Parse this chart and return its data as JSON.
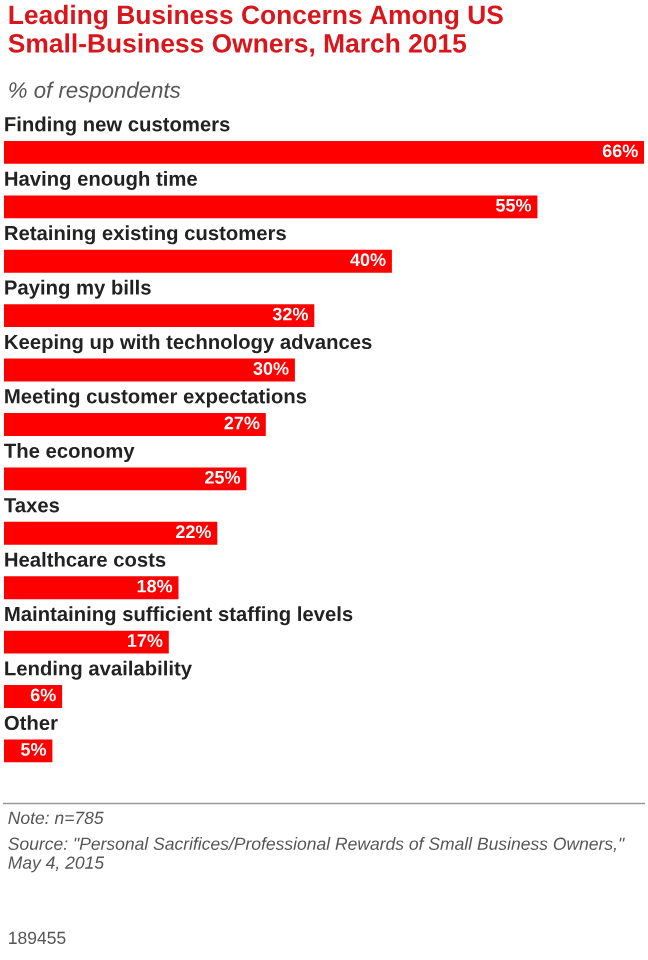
{
  "chart_data": {
    "type": "bar",
    "orientation": "horizontal",
    "title": "Leading Business Concerns Among US Small-Business Owners, March 2015",
    "subtitle": "% of respondents",
    "categories": [
      "Finding new customers",
      "Having enough time",
      "Retaining existing customers",
      "Paying my bills",
      "Keeping up with technology advances",
      "Meeting customer expectations",
      "The economy",
      "Taxes",
      "Healthcare costs",
      "Maintaining sufficient staffing levels",
      "Lending availability",
      "Other"
    ],
    "values": [
      66,
      55,
      40,
      32,
      30,
      27,
      25,
      22,
      18,
      17,
      6,
      5
    ],
    "color": "#ff0000",
    "value_labels": [
      "66%",
      "55%",
      "40%",
      "32%",
      "30%",
      "27%",
      "25%",
      "22%",
      "18%",
      "17%",
      "6%",
      "5%"
    ],
    "annotations": [
      "Note: n=785",
      "Source: \"Personal Sacrifices/Professional Rewards of Small Business Owners,\" May 4, 2015",
      "189455"
    ],
    "data_labels": false
  }
}
